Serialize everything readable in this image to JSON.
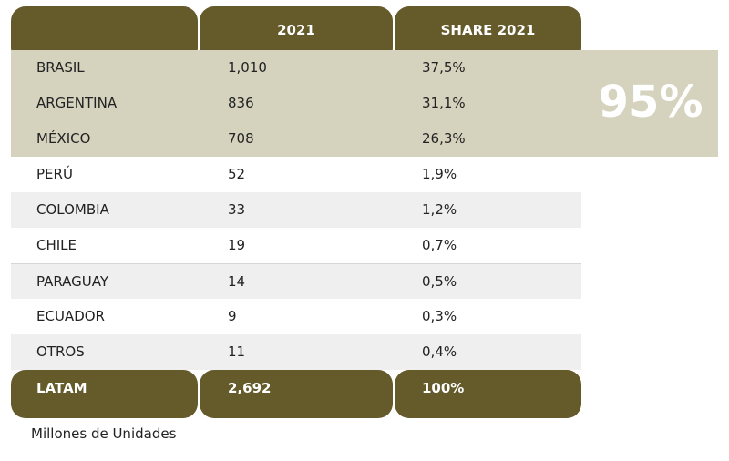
{
  "chart_data": {
    "type": "table",
    "columns": [
      "",
      "2021",
      "SHARE 2021"
    ],
    "rows": [
      {
        "country": "BRASIL",
        "units": "1,010",
        "share": "37,5%"
      },
      {
        "country": "ARGENTINA",
        "units": "836",
        "share": "31,1%"
      },
      {
        "country": "MÉXICO",
        "units": "708",
        "share": "26,3%"
      },
      {
        "country": "PERÚ",
        "units": "52",
        "share": "1,9%"
      },
      {
        "country": "COLOMBIA",
        "units": "33",
        "share": "1,2%"
      },
      {
        "country": "CHILE",
        "units": "19",
        "share": "0,7%"
      },
      {
        "country": "PARAGUAY",
        "units": "14",
        "share": "0,5%"
      },
      {
        "country": "ECUADOR",
        "units": "9",
        "share": "0,3%"
      },
      {
        "country": "OTROS",
        "units": "11",
        "share": "0,4%"
      }
    ],
    "total": {
      "country": "LATAM",
      "units": "2,692",
      "share": "100%"
    },
    "highlight": {
      "rows": [
        "BRASIL",
        "ARGENTINA",
        "MÉXICO"
      ],
      "label": "95%"
    },
    "note": "Millones de Unidades"
  },
  "colors": {
    "header": "#645a2a",
    "highlight_band": "#d5d3be",
    "alt_row": "#efefef",
    "text": "#222222"
  }
}
